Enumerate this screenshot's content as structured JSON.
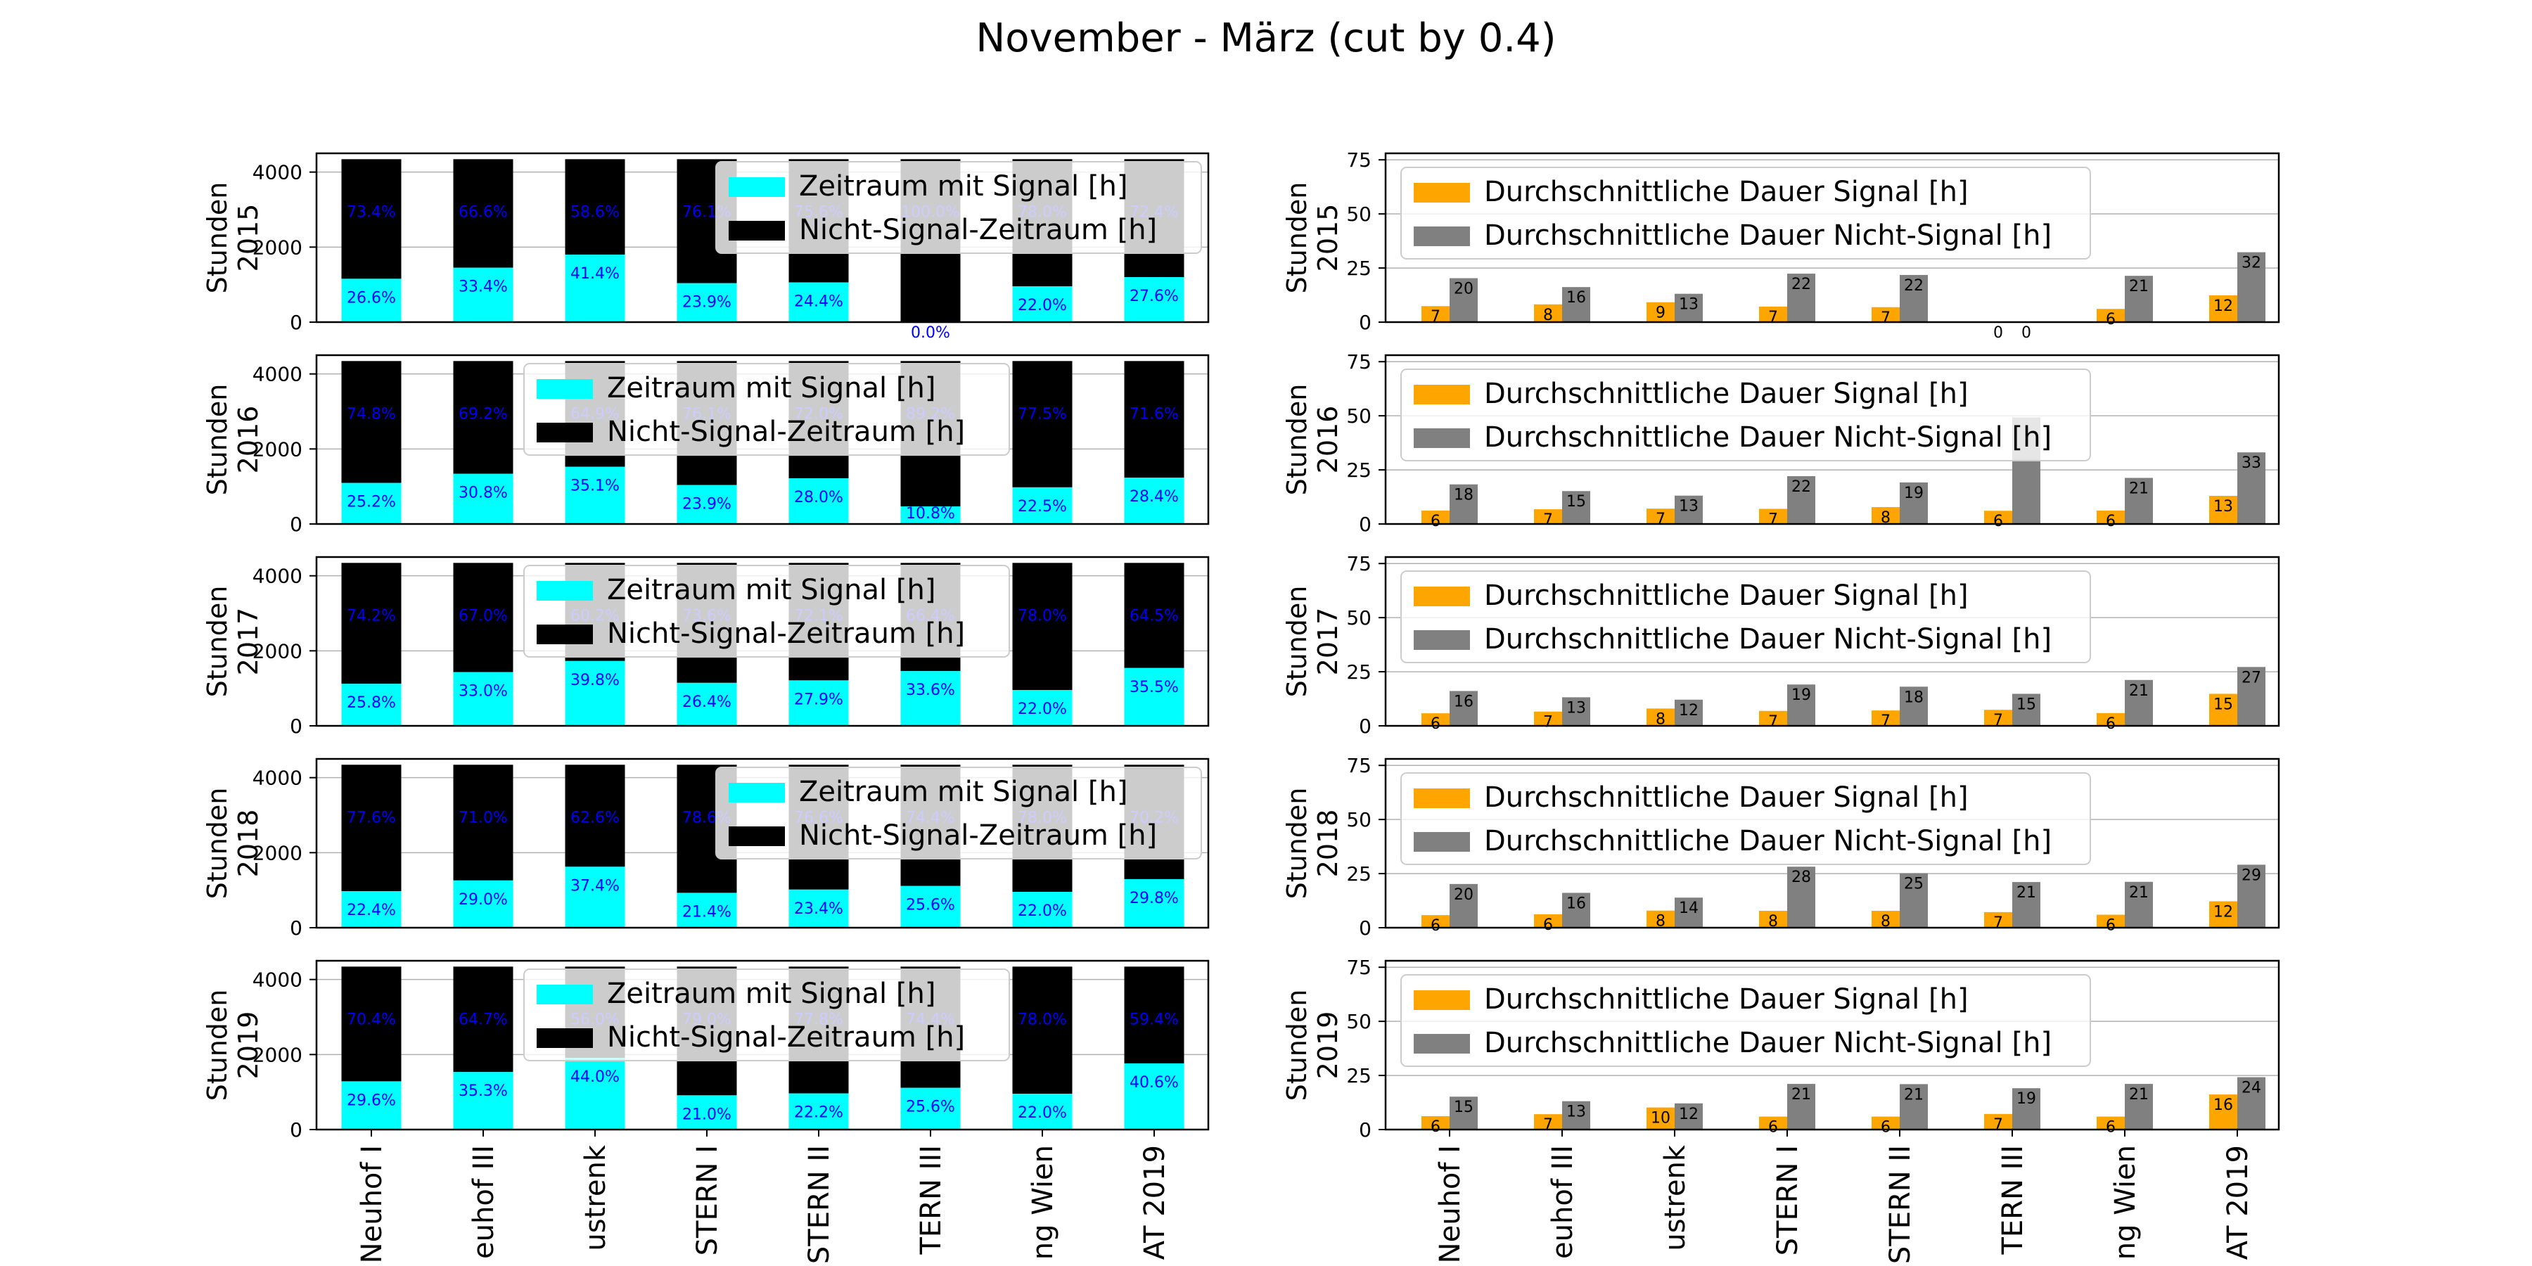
{
  "title": "November - März (cut by 0.4)",
  "stations": [
    "Neuhof I",
    "euhof III",
    "ustrenk",
    "STERN I",
    "STERN II",
    "TERN III",
    "ng Wien",
    "AT 2019"
  ],
  "ylabel_prefix": "Stunden",
  "colors": {
    "signal": "#00ffff",
    "nosignal": "#000000",
    "pct_label": "#0000ff",
    "avg_signal": "#ffa500",
    "avg_nosignal": "#808080",
    "legend_bg": "#ffffff"
  },
  "legend_left": [
    "Zeitraum mit Signal [h]",
    "Nicht-Signal-Zeitraum [h]"
  ],
  "legend_right": [
    "Durchschnittliche Dauer Signal [h]",
    "Durchschnittliche Dauer Nicht-Signal [h]"
  ],
  "chart_data": [
    {
      "type": "bar",
      "stacked": true,
      "years": [
        "2015",
        "2016",
        "2017",
        "2018",
        "2019"
      ],
      "categories": [
        "Neuhof I",
        "euhof III",
        "ustrenk",
        "STERN I",
        "STERN II",
        "TERN III",
        "ng Wien",
        "AT 2019"
      ],
      "ylim": [
        0,
        4500
      ],
      "yticks": [
        0,
        2000,
        4000
      ],
      "total_hours": 4344,
      "legend_placement": "upper right (over bars)",
      "grid": "y",
      "panels": [
        {
          "year": "2015",
          "legend_x_anchor": "right",
          "signal_pct": [
            "26.6%",
            "33.4%",
            "41.4%",
            "23.9%",
            "24.4%",
            "0.0%",
            "22.0%",
            "27.6%"
          ],
          "nosignal_pct": [
            "73.4%",
            "66.6%",
            "58.6%",
            "76.1%",
            "75.6%",
            "100.0%",
            "78.0%",
            "72.4%"
          ],
          "signal_values": [
            26.6,
            33.4,
            41.4,
            23.9,
            24.4,
            0.0,
            22.0,
            27.6
          ]
        },
        {
          "year": "2016",
          "legend_x_anchor": "center",
          "signal_pct": [
            "25.2%",
            "30.8%",
            "35.1%",
            "23.9%",
            "28.0%",
            "10.8%",
            "22.5%",
            "28.4%"
          ],
          "nosignal_pct": [
            "74.8%",
            "69.2%",
            "64.9%",
            "76.1%",
            "72.0%",
            "89.2%",
            "77.5%",
            "71.6%"
          ],
          "signal_values": [
            25.2,
            30.8,
            35.1,
            23.9,
            28.0,
            10.8,
            22.5,
            28.4
          ]
        },
        {
          "year": "2017",
          "legend_x_anchor": "center",
          "signal_pct": [
            "25.8%",
            "33.0%",
            "39.8%",
            "26.4%",
            "27.9%",
            "33.6%",
            "22.0%",
            "35.5%"
          ],
          "nosignal_pct": [
            "74.2%",
            "67.0%",
            "60.2%",
            "73.6%",
            "72.1%",
            "66.4%",
            "78.0%",
            "64.5%"
          ],
          "signal_values": [
            25.8,
            33.0,
            39.8,
            26.4,
            27.9,
            33.6,
            22.0,
            35.5
          ]
        },
        {
          "year": "2018",
          "legend_x_anchor": "right",
          "signal_pct": [
            "22.4%",
            "29.0%",
            "37.4%",
            "21.4%",
            "23.4%",
            "25.6%",
            "22.0%",
            "29.8%"
          ],
          "nosignal_pct": [
            "77.6%",
            "71.0%",
            "62.6%",
            "78.6%",
            "76.6%",
            "74.4%",
            "78.0%",
            "70.2%"
          ],
          "signal_values": [
            22.4,
            29.0,
            37.4,
            21.4,
            23.4,
            25.6,
            22.0,
            29.8
          ]
        },
        {
          "year": "2019",
          "legend_x_anchor": "center",
          "signal_pct": [
            "29.6%",
            "35.3%",
            "44.0%",
            "21.0%",
            "22.2%",
            "25.6%",
            "22.0%",
            "40.6%"
          ],
          "nosignal_pct": [
            "70.4%",
            "64.7%",
            "56.0%",
            "79.0%",
            "77.8%",
            "74.4%",
            "78.0%",
            "59.4%"
          ],
          "signal_values": [
            29.6,
            35.3,
            44.0,
            21.0,
            22.2,
            25.6,
            22.0,
            40.6
          ]
        }
      ]
    },
    {
      "type": "bar",
      "grouped": true,
      "years": [
        "2015",
        "2016",
        "2017",
        "2018",
        "2019"
      ],
      "categories": [
        "Neuhof I",
        "euhof III",
        "ustrenk",
        "STERN I",
        "STERN II",
        "TERN III",
        "ng Wien",
        "AT 2019"
      ],
      "ylim": [
        0,
        78
      ],
      "yticks": [
        0,
        25,
        50,
        75
      ],
      "legend_placement": "upper left",
      "grid": "y",
      "panels": [
        {
          "year": "2015",
          "signal": [
            7.4,
            8.2,
            9.2,
            7.2,
            6.9,
            0,
            6.1,
            12.4
          ],
          "nosignal": [
            20.3,
            16.2,
            13.1,
            22.4,
            21.8,
            0,
            21.4,
            32.3
          ],
          "signal_labels": [
            "7",
            "8",
            "9",
            "7",
            "7",
            "0",
            "6",
            "12"
          ],
          "nosignal_labels": [
            "20",
            "16",
            "13",
            "22",
            "22",
            "0",
            "21",
            "32"
          ]
        },
        {
          "year": "2016",
          "signal": [
            6.2,
            6.8,
            7.1,
            7.0,
            7.8,
            6.1,
            6.2,
            13.0
          ],
          "nosignal": [
            18.3,
            15.2,
            13.1,
            22.1,
            19.2,
            49.2,
            21.3,
            33.1
          ],
          "signal_labels": [
            "6",
            "7",
            "7",
            "7",
            "8",
            "6",
            "6",
            "13"
          ],
          "nosignal_labels": [
            "18",
            "15",
            "13",
            "22",
            "19",
            "",
            "21",
            "33"
          ]
        },
        {
          "year": "2017",
          "signal": [
            5.8,
            6.6,
            8.0,
            6.9,
            7.1,
            7.4,
            5.9,
            14.8
          ],
          "nosignal": [
            16.1,
            13.2,
            12.1,
            19.1,
            18.1,
            14.8,
            21.2,
            27.2
          ],
          "signal_labels": [
            "6",
            "7",
            "8",
            "7",
            "7",
            "7",
            "6",
            "15"
          ],
          "nosignal_labels": [
            "16",
            "13",
            "12",
            "19",
            "18",
            "15",
            "21",
            "27"
          ]
        },
        {
          "year": "2018",
          "signal": [
            5.8,
            6.2,
            7.9,
            7.8,
            7.8,
            7.2,
            6.0,
            12.2
          ],
          "nosignal": [
            20.2,
            16.1,
            13.9,
            28.2,
            25.2,
            21.1,
            21.2,
            29.1
          ],
          "signal_labels": [
            "6",
            "6",
            "8",
            "8",
            "8",
            "7",
            "6",
            "12"
          ],
          "nosignal_labels": [
            "20",
            "16",
            "14",
            "28",
            "25",
            "21",
            "21",
            "29"
          ]
        },
        {
          "year": "2019",
          "signal": [
            6.2,
            7.1,
            10.2,
            6.0,
            6.0,
            7.2,
            6.0,
            16.2
          ],
          "nosignal": [
            15.2,
            13.1,
            12.1,
            21.1,
            21.0,
            19.1,
            21.1,
            24.2
          ],
          "signal_labels": [
            "6",
            "7",
            "10",
            "6",
            "6",
            "7",
            "6",
            "16"
          ],
          "nosignal_labels": [
            "15",
            "13",
            "12",
            "21",
            "21",
            "19",
            "21",
            "24"
          ]
        }
      ]
    }
  ]
}
